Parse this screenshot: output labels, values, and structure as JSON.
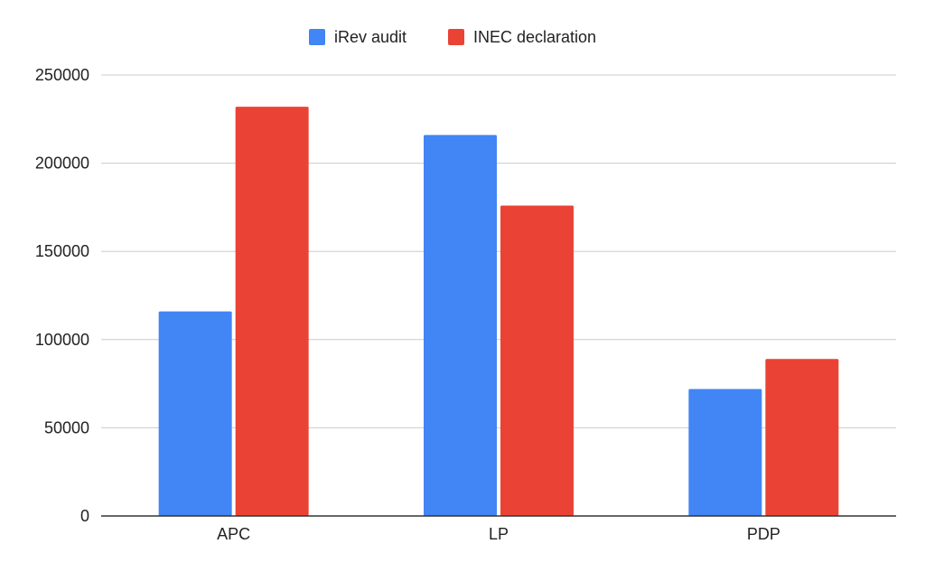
{
  "chart_data": {
    "type": "bar",
    "categories": [
      "APC",
      "LP",
      "PDP"
    ],
    "series": [
      {
        "name": "iRev audit",
        "values": [
          116000,
          216000,
          72000
        ],
        "color": "#4285F4"
      },
      {
        "name": "INEC declaration",
        "values": [
          232000,
          176000,
          89000
        ],
        "color": "#EA4335"
      }
    ],
    "ylim": [
      0,
      250000
    ],
    "yticks": [
      0,
      50000,
      100000,
      150000,
      200000,
      250000
    ],
    "ytick_labels": [
      "0",
      "50000",
      "100000",
      "150000",
      "200000",
      "250000"
    ],
    "grid": true,
    "legend": "top-center",
    "title": "",
    "xlabel": "",
    "ylabel": ""
  }
}
